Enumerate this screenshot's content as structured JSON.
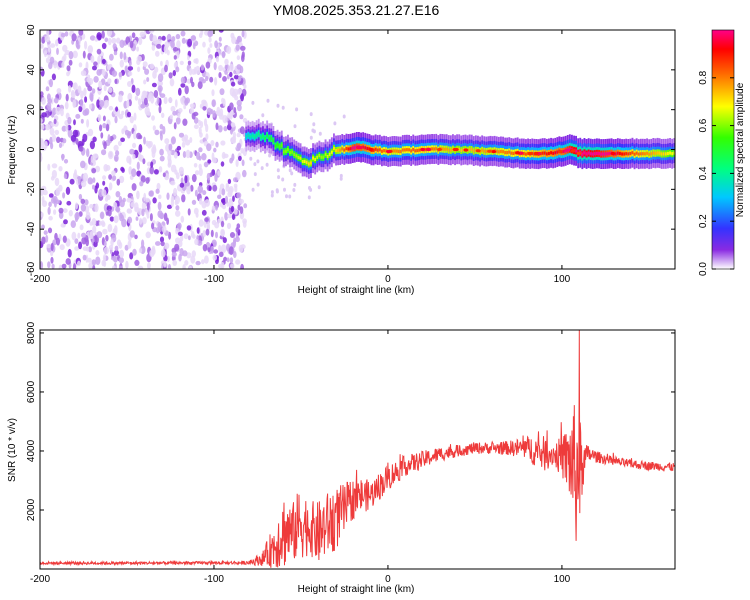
{
  "title": "YM08.2025.353.21.27.E16",
  "colors": {
    "snr_line": "#ee3b3b",
    "axis": "#000000",
    "background": "#ffffff"
  },
  "chart_data": [
    {
      "type": "heatmap",
      "name": "spectrogram",
      "xlabel": "Height of straight line (km)",
      "ylabel": "Frequency (Hz)",
      "xlim": [
        -200,
        165
      ],
      "ylim": [
        -60,
        60
      ],
      "xticks": [
        -200,
        -100,
        0,
        100
      ],
      "yticks": [
        -60,
        -40,
        -20,
        0,
        20,
        40,
        60
      ],
      "colorbar": {
        "label": "Normalized spectral amplitude",
        "range": [
          0,
          1
        ],
        "ticks": [
          0.0,
          0.2,
          0.4,
          0.6,
          0.8
        ]
      },
      "noise_region_x": [
        -200,
        -82
      ],
      "signal_ridge": {
        "x": [
          -82,
          -75,
          -70,
          -65,
          -60,
          -55,
          -50,
          -45,
          -42,
          -38,
          -35,
          -30,
          -25,
          -20,
          -15,
          -10,
          0,
          20,
          40,
          60,
          80,
          90,
          100,
          105,
          110,
          120,
          140,
          165
        ],
        "frequency": [
          7,
          8,
          6,
          3,
          0,
          -3,
          -5,
          -6,
          -5,
          -3,
          -2,
          0,
          0,
          1,
          1,
          0,
          -1,
          0,
          0,
          -1,
          -2,
          -2,
          -1,
          0,
          -2,
          -2,
          -2,
          -2
        ],
        "amplitude": [
          0.3,
          0.35,
          0.4,
          0.45,
          0.5,
          0.5,
          0.55,
          0.6,
          0.55,
          0.5,
          0.55,
          0.6,
          0.7,
          0.85,
          0.8,
          0.75,
          0.65,
          0.7,
          0.6,
          0.65,
          0.7,
          0.75,
          0.8,
          0.9,
          0.95,
          0.9,
          0.7,
          0.55
        ]
      }
    },
    {
      "type": "line",
      "name": "snr",
      "xlabel": "Height of straight line (km)",
      "ylabel": "SNR (10 * v/v)",
      "xlim": [
        -200,
        165
      ],
      "ylim": [
        0,
        8100
      ],
      "xticks": [
        -200,
        -100,
        0,
        100
      ],
      "yticks": [
        2000,
        4000,
        6000,
        8000
      ],
      "series": [
        {
          "name": "SNR",
          "x": [
            -200,
            -150,
            -100,
            -80,
            -72,
            -65,
            -60,
            -55,
            -50,
            -45,
            -40,
            -35,
            -30,
            -25,
            -20,
            -15,
            -10,
            0,
            10,
            20,
            30,
            40,
            50,
            60,
            70,
            80,
            85,
            90,
            95,
            100,
            103,
            106,
            108,
            110,
            112,
            115,
            120,
            130,
            140,
            150,
            165
          ],
          "baseline": [
            200,
            200,
            210,
            210,
            350,
            800,
            1300,
            1200,
            1600,
            1400,
            1200,
            1500,
            1700,
            2000,
            2400,
            2500,
            2500,
            3100,
            3500,
            3700,
            3900,
            4000,
            4100,
            4100,
            4100,
            4100,
            4000,
            3900,
            3900,
            3800,
            3700,
            3600,
            3200,
            3100,
            3500,
            3900,
            3800,
            3650,
            3550,
            3500,
            3450
          ],
          "noise": [
            50,
            50,
            50,
            60,
            250,
            800,
            1300,
            1000,
            1300,
            900,
            1100,
            1100,
            1100,
            900,
            700,
            600,
            500,
            450,
            350,
            300,
            250,
            200,
            200,
            200,
            250,
            400,
            550,
            600,
            400,
            700,
            1100,
            1900,
            2500,
            2200,
            800,
            300,
            200,
            150,
            150,
            150,
            150
          ],
          "peak": {
            "x": 110,
            "value": 8100
          }
        }
      ]
    }
  ]
}
